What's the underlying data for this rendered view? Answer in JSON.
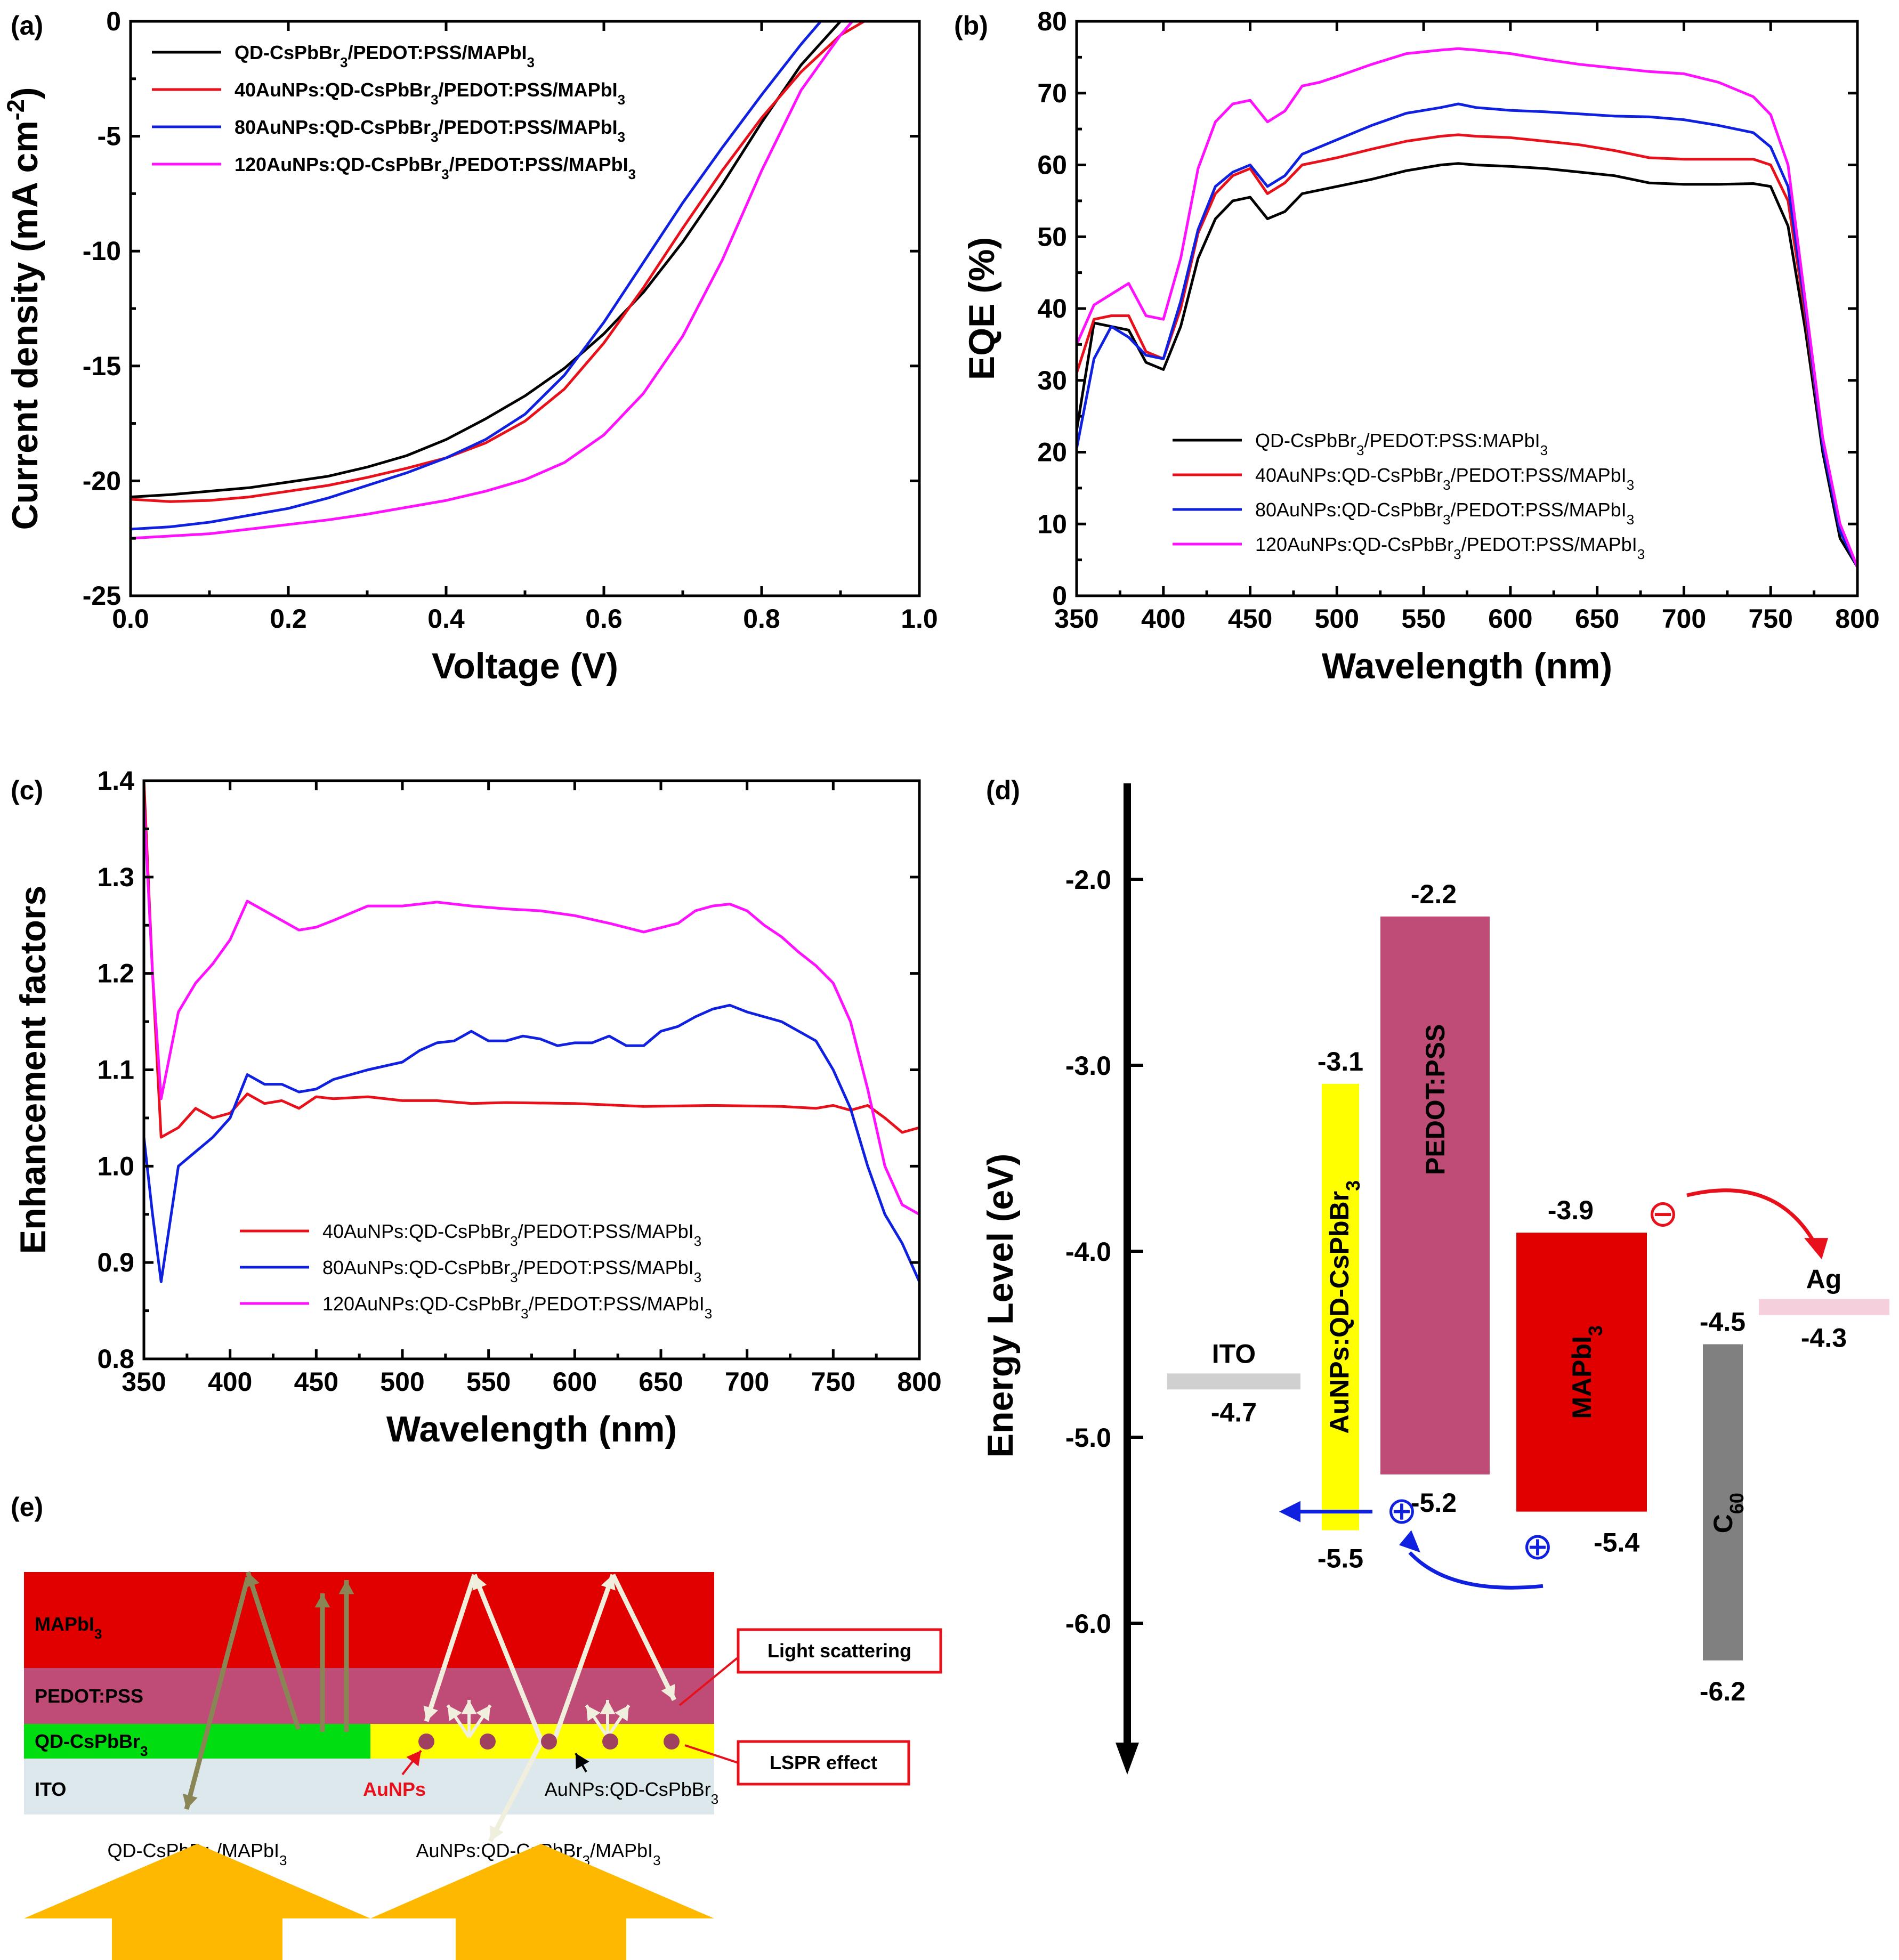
{
  "colors": {
    "black": "#000000",
    "red": "#e8101a",
    "blue": "#1020e0",
    "magenta": "#ff10ff"
  },
  "panel_labels": {
    "a": "(a)",
    "b": "(b)",
    "c": "(c)",
    "d": "(d)",
    "e": "(e)"
  },
  "chart_data": [
    {
      "id": "a",
      "type": "line",
      "xlabel": "Voltage (V)",
      "ylabel": "Current density (mA cm",
      "ylabel_sup": "-2",
      "ylabel_end": ")",
      "xlim": [
        0,
        1
      ],
      "ylim": [
        -25,
        0
      ],
      "xticks": [
        "0.0",
        "0.2",
        "0.4",
        "0.6",
        "0.8",
        "1.0"
      ],
      "xtick_vals": [
        0,
        0.2,
        0.4,
        0.6,
        0.8,
        1.0
      ],
      "yticks": [
        "-25",
        "-20",
        "-15",
        "-10",
        "-5",
        "0"
      ],
      "ytick_vals": [
        -25,
        -20,
        -15,
        -10,
        -5,
        0
      ],
      "legend_position": "top-left",
      "series": [
        {
          "name": "QD-CsPbBr3/PEDOT:PSS/MAPbI3",
          "color": "#000000",
          "x": [
            0,
            0.05,
            0.1,
            0.15,
            0.2,
            0.25,
            0.3,
            0.35,
            0.4,
            0.45,
            0.5,
            0.55,
            0.6,
            0.65,
            0.7,
            0.75,
            0.8,
            0.85,
            0.9,
            0.91
          ],
          "y": [
            -20.7,
            -20.6,
            -20.45,
            -20.3,
            -20.05,
            -19.8,
            -19.4,
            -18.9,
            -18.2,
            -17.3,
            -16.3,
            -15.1,
            -13.6,
            -11.8,
            -9.6,
            -7.1,
            -4.4,
            -1.9,
            0,
            0
          ]
        },
        {
          "name": "40AuNPs:QD-CsPbBr3/PEDOT:PSS/MAPbI3",
          "color": "#e8101a",
          "x": [
            0,
            0.05,
            0.1,
            0.15,
            0.2,
            0.25,
            0.3,
            0.35,
            0.4,
            0.45,
            0.5,
            0.55,
            0.6,
            0.65,
            0.7,
            0.75,
            0.8,
            0.85,
            0.9,
            0.93
          ],
          "y": [
            -20.8,
            -20.9,
            -20.85,
            -20.7,
            -20.45,
            -20.2,
            -19.85,
            -19.45,
            -19.0,
            -18.35,
            -17.4,
            -16.0,
            -14.0,
            -11.6,
            -9.0,
            -6.5,
            -4.2,
            -2.2,
            -0.6,
            0
          ]
        },
        {
          "name": "80AuNPs:QD-CsPbBr3/PEDOT:PSS/MAPbI3",
          "color": "#1020e0",
          "x": [
            0,
            0.05,
            0.1,
            0.15,
            0.2,
            0.25,
            0.3,
            0.35,
            0.4,
            0.45,
            0.5,
            0.55,
            0.6,
            0.65,
            0.7,
            0.75,
            0.8,
            0.85,
            0.875
          ],
          "y": [
            -22.1,
            -22.0,
            -21.8,
            -21.5,
            -21.2,
            -20.75,
            -20.2,
            -19.65,
            -19.0,
            -18.2,
            -17.1,
            -15.4,
            -13.1,
            -10.5,
            -7.9,
            -5.5,
            -3.2,
            -1.0,
            0
          ]
        },
        {
          "name": "120AuNPs:QD-CsPbBr3/PEDOT:PSS/MAPbI3",
          "color": "#ff10ff",
          "x": [
            0,
            0.05,
            0.1,
            0.15,
            0.2,
            0.25,
            0.3,
            0.35,
            0.4,
            0.45,
            0.5,
            0.55,
            0.6,
            0.65,
            0.7,
            0.75,
            0.8,
            0.85,
            0.9,
            0.915
          ],
          "y": [
            -22.5,
            -22.4,
            -22.3,
            -22.1,
            -21.9,
            -21.7,
            -21.45,
            -21.15,
            -20.85,
            -20.45,
            -19.95,
            -19.2,
            -18.0,
            -16.2,
            -13.7,
            -10.4,
            -6.5,
            -3.0,
            -0.6,
            0
          ]
        }
      ]
    },
    {
      "id": "b",
      "type": "line",
      "xlabel": "Wavelength (nm)",
      "ylabel": "EQE (%)",
      "xlim": [
        350,
        800
      ],
      "ylim": [
        0,
        80
      ],
      "xticks": [
        "350",
        "400",
        "450",
        "500",
        "550",
        "600",
        "650",
        "700",
        "750",
        "800"
      ],
      "xtick_vals": [
        350,
        400,
        450,
        500,
        550,
        600,
        650,
        700,
        750,
        800
      ],
      "yticks": [
        "0",
        "10",
        "20",
        "30",
        "40",
        "50",
        "60",
        "70",
        "80"
      ],
      "ytick_vals": [
        0,
        10,
        20,
        30,
        40,
        50,
        60,
        70,
        80
      ],
      "legend_position": "bottom-center",
      "x": [
        350,
        360,
        370,
        380,
        390,
        400,
        410,
        420,
        430,
        440,
        450,
        460,
        470,
        480,
        490,
        500,
        520,
        540,
        560,
        570,
        580,
        600,
        620,
        640,
        660,
        680,
        700,
        720,
        740,
        750,
        760,
        770,
        780,
        790,
        800
      ],
      "series": [
        {
          "name": "QD-CsPbBr3/PEDOT:PSS:MAPbI3",
          "color": "#000000",
          "values": [
            23,
            38,
            37.5,
            37,
            32.5,
            31.5,
            37.5,
            47,
            52.5,
            55,
            55.5,
            52.5,
            53.5,
            56,
            56.5,
            57,
            58,
            59.2,
            60,
            60.2,
            60,
            59.8,
            59.5,
            59,
            58.5,
            57.5,
            57.3,
            57.3,
            57.4,
            57,
            51.5,
            37,
            20,
            8,
            4
          ]
        },
        {
          "name": "40AuNPs:QD-CsPbBr3/PEDOT:PSS/MAPbI3",
          "color": "#e8101a",
          "values": [
            31,
            38.5,
            39,
            39,
            34,
            33,
            40,
            50.5,
            56,
            58.5,
            59.5,
            56,
            57.5,
            60,
            60.5,
            61,
            62.2,
            63.3,
            64,
            64.2,
            64,
            63.8,
            63.3,
            62.8,
            62,
            61,
            60.8,
            60.8,
            60.8,
            60,
            55,
            39,
            21,
            9,
            4
          ]
        },
        {
          "name": "80AuNPs:QD-CsPbBr3/PEDOT:PSS/MAPbI3",
          "color": "#1020e0",
          "values": [
            20.5,
            33,
            37.5,
            36,
            33.5,
            33,
            41,
            51,
            57,
            59,
            60,
            57,
            58.5,
            61.5,
            62.5,
            63.5,
            65.5,
            67.2,
            68,
            68.5,
            68,
            67.6,
            67.4,
            67.1,
            66.8,
            66.7,
            66.3,
            65.5,
            64.5,
            62.5,
            57,
            40,
            21,
            9,
            4
          ]
        },
        {
          "name": "120AuNPs:QD-CsPbBr3/PEDOT:PSS/MAPbI3",
          "color": "#ff10ff",
          "values": [
            35,
            40.5,
            42,
            43.5,
            39,
            38.5,
            47,
            59.5,
            66,
            68.5,
            69,
            66,
            67.5,
            71,
            71.5,
            72.3,
            74,
            75.5,
            76,
            76.2,
            76,
            75.5,
            74.7,
            74,
            73.5,
            73,
            72.7,
            71.5,
            69.5,
            67,
            60,
            41,
            22,
            10,
            4
          ]
        }
      ]
    },
    {
      "id": "c",
      "type": "line",
      "xlabel": "Wavelength (nm)",
      "ylabel": "Enhancement factors",
      "xlim": [
        350,
        800
      ],
      "ylim": [
        0.8,
        1.4
      ],
      "xticks": [
        "350",
        "400",
        "450",
        "500",
        "550",
        "600",
        "650",
        "700",
        "750",
        "800"
      ],
      "xtick_vals": [
        350,
        400,
        450,
        500,
        550,
        600,
        650,
        700,
        750,
        800
      ],
      "yticks": [
        "0.8",
        "0.9",
        "1.0",
        "1.1",
        "1.2",
        "1.3",
        "1.4"
      ],
      "ytick_vals": [
        0.8,
        0.9,
        1.0,
        1.1,
        1.2,
        1.3,
        1.4
      ],
      "legend_position": "bottom-center",
      "series": [
        {
          "name": "40AuNPs:QD-CsPbBr3/PEDOT:PSS/MAPbI3",
          "color": "#e8101a",
          "x": [
            350,
            355,
            360,
            370,
            380,
            390,
            400,
            410,
            420,
            430,
            440,
            450,
            460,
            480,
            500,
            520,
            540,
            560,
            600,
            640,
            680,
            720,
            740,
            750,
            760,
            770,
            780,
            790,
            800
          ],
          "values": [
            1.4,
            1.2,
            1.03,
            1.04,
            1.06,
            1.05,
            1.055,
            1.075,
            1.065,
            1.068,
            1.06,
            1.072,
            1.07,
            1.072,
            1.068,
            1.068,
            1.065,
            1.066,
            1.065,
            1.062,
            1.063,
            1.062,
            1.06,
            1.063,
            1.058,
            1.063,
            1.05,
            1.035,
            1.04
          ]
        },
        {
          "name": "80AuNPs:QD-CsPbBr3/PEDOT:PSS/MAPbI3",
          "color": "#1020e0",
          "x": [
            350,
            355,
            360,
            370,
            380,
            390,
            400,
            410,
            420,
            430,
            440,
            450,
            460,
            480,
            500,
            510,
            520,
            530,
            540,
            550,
            560,
            570,
            580,
            590,
            600,
            610,
            620,
            630,
            640,
            650,
            660,
            670,
            680,
            690,
            700,
            720,
            740,
            750,
            760,
            770,
            780,
            790,
            800
          ],
          "values": [
            1.03,
            0.95,
            0.88,
            1.0,
            1.015,
            1.03,
            1.05,
            1.095,
            1.085,
            1.085,
            1.077,
            1.08,
            1.09,
            1.1,
            1.108,
            1.12,
            1.128,
            1.13,
            1.14,
            1.13,
            1.13,
            1.135,
            1.132,
            1.125,
            1.128,
            1.128,
            1.135,
            1.125,
            1.125,
            1.14,
            1.145,
            1.155,
            1.163,
            1.167,
            1.16,
            1.15,
            1.13,
            1.1,
            1.06,
            1.0,
            0.95,
            0.92,
            0.88
          ]
        },
        {
          "name": "120AuNPs:QD-CsPbBr3/PEDOT:PSS/MAPbI3",
          "color": "#ff10ff",
          "x": [
            350,
            355,
            360,
            370,
            380,
            390,
            400,
            410,
            420,
            430,
            440,
            450,
            460,
            480,
            500,
            520,
            540,
            560,
            580,
            600,
            620,
            640,
            660,
            670,
            680,
            690,
            700,
            710,
            720,
            730,
            740,
            750,
            760,
            770,
            780,
            790,
            800
          ],
          "values": [
            1.38,
            1.2,
            1.07,
            1.16,
            1.19,
            1.21,
            1.235,
            1.275,
            1.265,
            1.255,
            1.245,
            1.248,
            1.255,
            1.27,
            1.27,
            1.274,
            1.27,
            1.267,
            1.265,
            1.26,
            1.252,
            1.243,
            1.252,
            1.265,
            1.27,
            1.272,
            1.265,
            1.25,
            1.238,
            1.222,
            1.208,
            1.19,
            1.15,
            1.08,
            1.0,
            0.96,
            0.95
          ]
        }
      ]
    },
    {
      "id": "d",
      "type": "diagram",
      "ylabel": "Energy Level (eV)",
      "ylim": [
        -6.75,
        -1.5
      ],
      "yticks": [
        "-6.0",
        "-5.0",
        "-4.0",
        "-3.0",
        "-2.0"
      ],
      "ytick_vals": [
        -6.0,
        -5.0,
        -4.0,
        -3.0,
        -2.0
      ],
      "levels": [
        {
          "name": "ITO",
          "label": "ITO",
          "value": -4.7,
          "value_label": "-4.7",
          "color": "#d0d0d0"
        },
        {
          "name": "AuNPs:QD-CsPbBr3",
          "label": "AuNPs:QD-CsPbBr",
          "label_sub": "3",
          "top": -3.1,
          "bottom": -5.5,
          "top_label": "-3.1",
          "bottom_label": "-5.5",
          "color": "#ffff00"
        },
        {
          "name": "PEDOT:PSS",
          "label": "PEDOT:PSS",
          "top": -2.2,
          "bottom": -5.2,
          "top_label": "-2.2",
          "bottom_label": "-5.2",
          "color": "#bf4c77"
        },
        {
          "name": "MAPbI3",
          "label": "MAPbI",
          "label_sub": "3",
          "top": -3.9,
          "bottom": -5.4,
          "top_label": "-3.9",
          "bottom_label": "-5.4",
          "color": "#e00000"
        },
        {
          "name": "C60",
          "label": "C",
          "label_sub": "60",
          "top": -4.5,
          "bottom": -6.2,
          "top_label": "-4.5",
          "bottom_label": "-6.2",
          "color": "#808080"
        },
        {
          "name": "Ag",
          "label": "Ag",
          "value": -4.3,
          "value_label": "-4.3",
          "color": "#f5d0dc"
        }
      ],
      "symbols": {
        "electron": "⊖",
        "hole": "⊕"
      }
    }
  ],
  "panel_e": {
    "layers": [
      {
        "name": "MAPbI3",
        "label": "MAPbI",
        "sub": "3",
        "color": "#e00000"
      },
      {
        "name": "PEDOT:PSS",
        "label": "PEDOT:PSS",
        "color": "#bf4c77"
      },
      {
        "name": "QD-CsPbBr3",
        "label": "QD-CsPbBr",
        "sub": "3",
        "color": "#00dd11"
      },
      {
        "name": "ITO",
        "label": "ITO",
        "color": "#dce8ec"
      }
    ],
    "aunps_label": "AuNPs",
    "mixed_label": "AuNPs:QD-CsPbBr",
    "mixed_sub": "3",
    "callout_scatter": "Light scattering",
    "callout_lspr": "LSPR effect",
    "bottom_left": "QD-CsPbBr",
    "bottom_left_sub": "3",
    "bottom_left_end": "/MAPbI",
    "bottom_left_end_sub": "3",
    "bottom_right": "AuNPs:QD-CsPbBr",
    "bottom_right_sub": "3",
    "bottom_right_end": "/MAPbI",
    "bottom_right_end_sub": "3",
    "arrow_color": "#ffb800"
  }
}
